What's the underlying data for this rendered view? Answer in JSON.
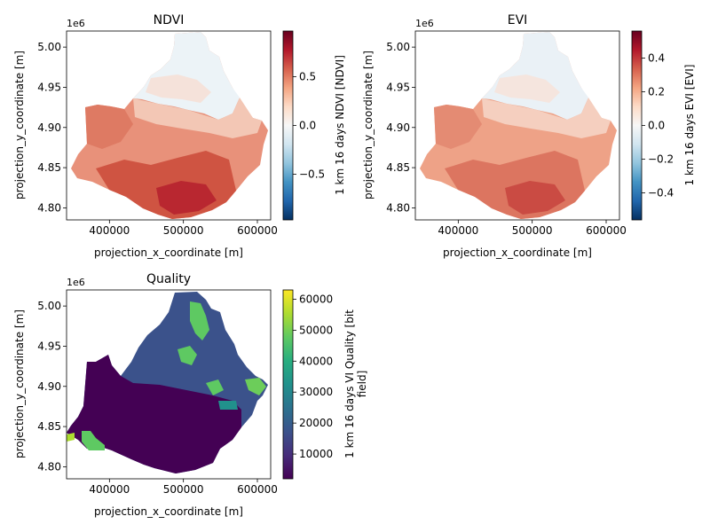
{
  "chart_data": [
    {
      "type": "heatmap",
      "title": "NDVI",
      "xlabel": "projection_x_coordinate [m]",
      "ylabel": "projection_y_coordinate [m]",
      "y_offset_label": "1e6",
      "xlim": [
        342000,
        618000
      ],
      "ylim": [
        4.785,
        5.02
      ],
      "x_ticks": [
        400000,
        500000,
        600000
      ],
      "x_tick_labels": [
        "400000",
        "500000",
        "600000"
      ],
      "y_ticks": [
        4.8,
        4.85,
        4.9,
        4.95,
        5.0
      ],
      "y_tick_labels": [
        "4.80",
        "4.85",
        "4.90",
        "4.95",
        "5.00"
      ],
      "colorbar": {
        "label": "1 km 16 days NDVI [NDVI]",
        "colormap": "RdBu_r",
        "range": [
          -0.97,
          0.97
        ],
        "ticks": [
          -0.5,
          0.0,
          0.5
        ],
        "tick_labels": [
          "−0.5",
          "0.0",
          "0.5"
        ]
      }
    },
    {
      "type": "heatmap",
      "title": "EVI",
      "xlabel": "projection_x_coordinate [m]",
      "ylabel": "projection_y_coordinate [m]",
      "y_offset_label": "1e6",
      "xlim": [
        342000,
        618000
      ],
      "ylim": [
        4.785,
        5.02
      ],
      "x_ticks": [
        400000,
        500000,
        600000
      ],
      "x_tick_labels": [
        "400000",
        "500000",
        "600000"
      ],
      "y_ticks": [
        4.8,
        4.85,
        4.9,
        4.95,
        5.0
      ],
      "y_tick_labels": [
        "4.80",
        "4.85",
        "4.90",
        "4.95",
        "5.00"
      ],
      "colorbar": {
        "label": "1 km 16 days EVI [EVI]",
        "colormap": "RdBu_r",
        "range": [
          -0.56,
          0.56
        ],
        "ticks": [
          -0.4,
          -0.2,
          0.0,
          0.2,
          0.4
        ],
        "tick_labels": [
          "−0.4",
          "−0.2",
          "0.0",
          "0.2",
          "0.4"
        ]
      }
    },
    {
      "type": "heatmap",
      "title": "Quality",
      "xlabel": "projection_x_coordinate [m]",
      "ylabel": "projection_y_coordinate [m]",
      "y_offset_label": "1e6",
      "xlim": [
        342000,
        618000
      ],
      "ylim": [
        4.785,
        5.02
      ],
      "x_ticks": [
        400000,
        500000,
        600000
      ],
      "x_tick_labels": [
        "400000",
        "500000",
        "600000"
      ],
      "y_ticks": [
        4.8,
        4.85,
        4.9,
        4.95,
        5.0
      ],
      "y_tick_labels": [
        "4.80",
        "4.85",
        "4.90",
        "4.95",
        "5.00"
      ],
      "colorbar": {
        "label_line1": "1 km 16 days VI Quality [bit",
        "label_line2": "field]",
        "colormap": "viridis",
        "range": [
          2000,
          63000
        ],
        "ticks": [
          10000,
          20000,
          30000,
          40000,
          50000,
          60000
        ],
        "tick_labels": [
          "10000",
          "20000",
          "30000",
          "40000",
          "50000",
          "60000"
        ]
      }
    }
  ]
}
